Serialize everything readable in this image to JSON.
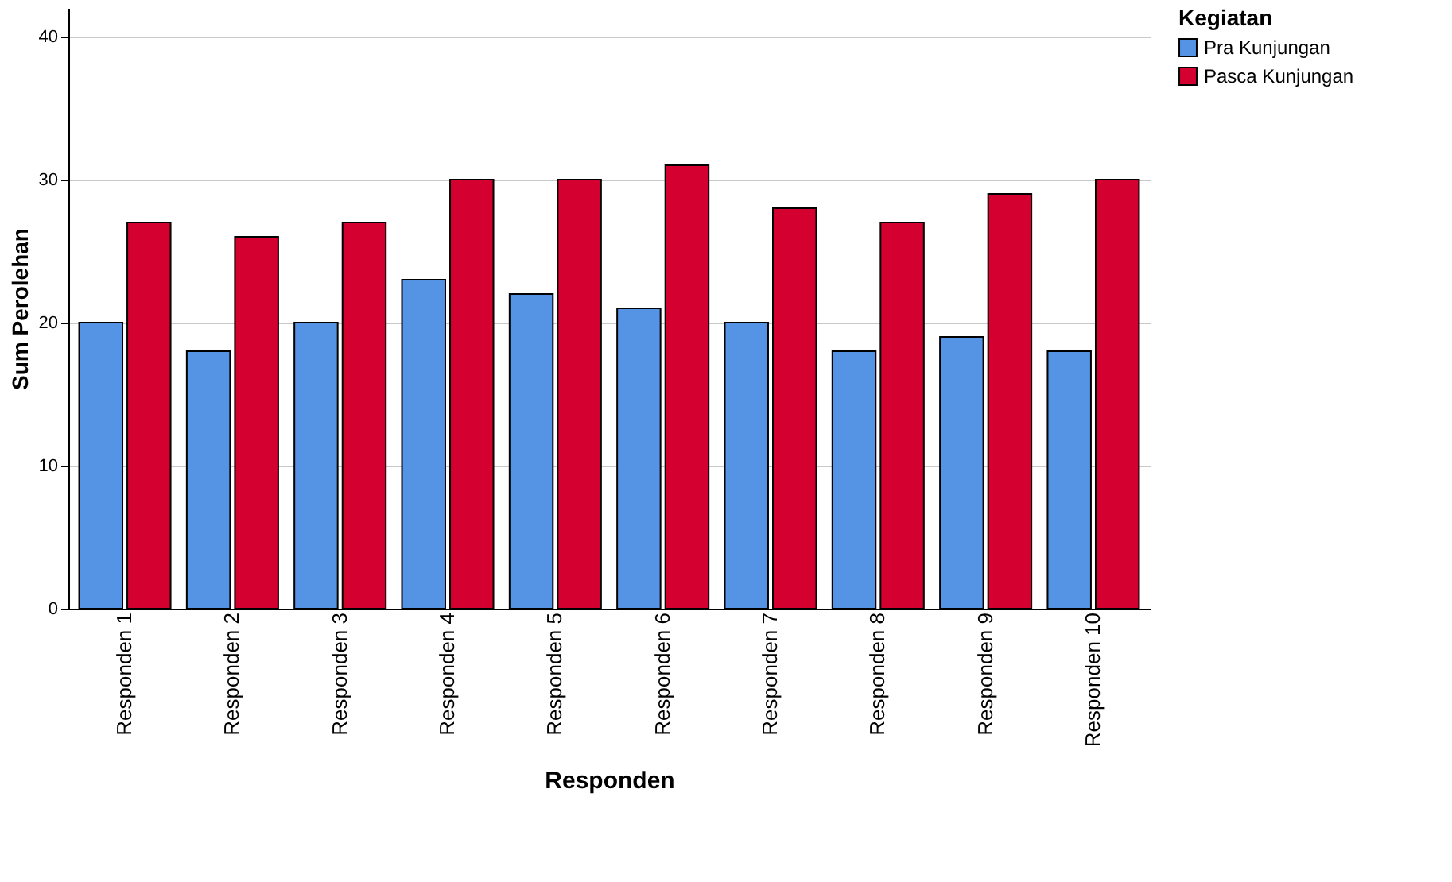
{
  "chart_data": {
    "type": "bar",
    "xlabel": "Responden",
    "ylabel": "Sum Perolehan",
    "legend_title": "Kegiatan",
    "categories": [
      "Responden 1",
      "Responden 2",
      "Responden 3",
      "Responden 4",
      "Responden 5",
      "Responden 6",
      "Responden 7",
      "Responden 8",
      "Responden 9",
      "Responden 10"
    ],
    "series": [
      {
        "name": "Pra Kunjungan",
        "color": "#5594e4",
        "values": [
          20,
          18,
          20,
          23,
          22,
          21,
          20,
          18,
          19,
          18
        ]
      },
      {
        "name": "Pasca Kunjungan",
        "color": "#d4002f",
        "values": [
          27,
          26,
          27,
          30,
          30,
          31,
          28,
          27,
          29,
          30
        ]
      }
    ],
    "ylim": [
      0,
      42
    ],
    "yticks": [
      0,
      10,
      20,
      30,
      40
    ],
    "grid": "y",
    "legend": "top right"
  }
}
